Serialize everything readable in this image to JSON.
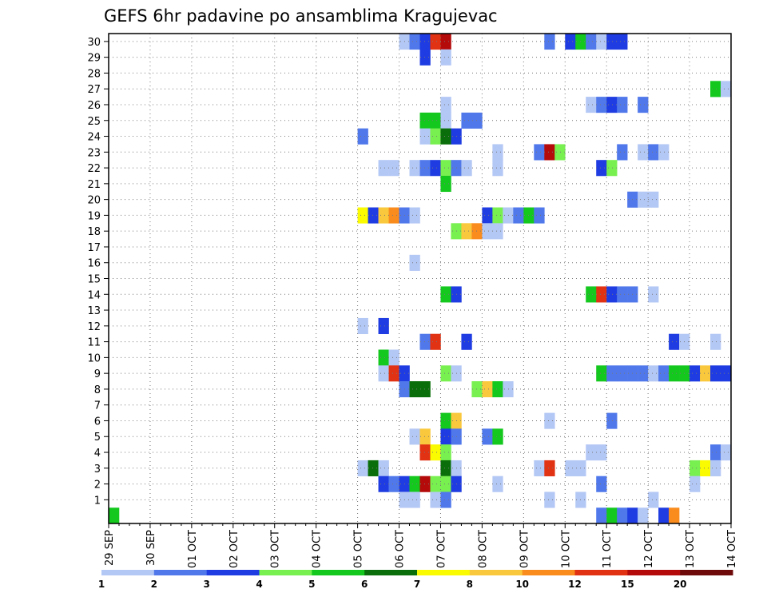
{
  "chart_data": {
    "type": "heatmap",
    "title": "GEFS 6hr padavine po ansamblima Kragujevac",
    "xlabel": "",
    "ylabel": "",
    "x_tick_labels": [
      "29 SEP",
      "30 SEP",
      "01 OCT",
      "02 OCT",
      "03 OCT",
      "04 OCT",
      "05 OCT",
      "06 OCT",
      "07 OCT",
      "08 OCT",
      "09 OCT",
      "10 OCT",
      "11 OCT",
      "12 OCT",
      "13 OCT",
      "14 OCT"
    ],
    "y_tick_labels": [
      "1",
      "2",
      "3",
      "4",
      "5",
      "6",
      "7",
      "8",
      "9",
      "10",
      "11",
      "12",
      "13",
      "14",
      "15",
      "16",
      "17",
      "18",
      "19",
      "20",
      "21",
      "22",
      "23",
      "24",
      "25",
      "26",
      "27",
      "28",
      "29",
      "30"
    ],
    "xlim_days": [
      0,
      15
    ],
    "ylim_members": [
      0,
      30
    ],
    "grid": true,
    "colorbar": {
      "placement": "bottom",
      "tick_labels": [
        "1",
        "2",
        "3",
        "4",
        "5",
        "6",
        "7",
        "8",
        "10",
        "12",
        "15",
        "20"
      ],
      "colors": [
        "#b4c8f5",
        "#5078eb",
        "#1e3ce1",
        "#78f050",
        "#14c81e",
        "#0a6e0a",
        "#fafa00",
        "#fac83c",
        "#fa8c1e",
        "#e13214",
        "#b40a0a",
        "#6e0a0a"
      ]
    },
    "cells_note": "[member, time_step (6h steps from 29 SEP 00z), color_class_index]",
    "cells": [
      [
        30,
        28,
        0
      ],
      [
        30,
        29,
        1
      ],
      [
        30,
        30,
        2
      ],
      [
        30,
        31,
        9
      ],
      [
        30,
        32,
        10
      ],
      [
        30,
        42,
        1
      ],
      [
        30,
        44,
        2
      ],
      [
        30,
        45,
        4
      ],
      [
        30,
        46,
        1
      ],
      [
        30,
        47,
        0
      ],
      [
        30,
        48,
        2
      ],
      [
        30,
        49,
        2
      ],
      [
        29,
        30,
        2
      ],
      [
        29,
        32,
        0
      ],
      [
        27,
        58,
        4
      ],
      [
        27,
        59,
        0
      ],
      [
        26,
        32,
        0
      ],
      [
        26,
        46,
        0
      ],
      [
        26,
        47,
        1
      ],
      [
        26,
        48,
        2
      ],
      [
        26,
        49,
        1
      ],
      [
        26,
        51,
        1
      ],
      [
        25,
        30,
        4
      ],
      [
        25,
        31,
        4
      ],
      [
        25,
        32,
        0
      ],
      [
        25,
        34,
        1
      ],
      [
        25,
        35,
        1
      ],
      [
        24,
        24,
        1
      ],
      [
        24,
        30,
        0
      ],
      [
        24,
        31,
        3
      ],
      [
        24,
        32,
        5
      ],
      [
        24,
        33,
        2
      ],
      [
        23,
        37,
        0
      ],
      [
        23,
        41,
        1
      ],
      [
        23,
        42,
        10
      ],
      [
        23,
        43,
        3
      ],
      [
        23,
        49,
        1
      ],
      [
        23,
        51,
        0
      ],
      [
        23,
        52,
        1
      ],
      [
        23,
        53,
        0
      ],
      [
        22,
        26,
        0
      ],
      [
        22,
        27,
        0
      ],
      [
        22,
        29,
        0
      ],
      [
        22,
        30,
        1
      ],
      [
        22,
        31,
        2
      ],
      [
        22,
        32,
        3
      ],
      [
        22,
        33,
        1
      ],
      [
        22,
        34,
        0
      ],
      [
        22,
        37,
        0
      ],
      [
        22,
        47,
        2
      ],
      [
        22,
        48,
        3
      ],
      [
        21,
        32,
        4
      ],
      [
        20,
        50,
        1
      ],
      [
        20,
        51,
        0
      ],
      [
        20,
        52,
        0
      ],
      [
        19,
        24,
        6
      ],
      [
        19,
        25,
        2
      ],
      [
        19,
        26,
        7
      ],
      [
        19,
        27,
        8
      ],
      [
        19,
        28,
        1
      ],
      [
        19,
        29,
        0
      ],
      [
        19,
        36,
        2
      ],
      [
        19,
        37,
        3
      ],
      [
        19,
        38,
        0
      ],
      [
        19,
        39,
        1
      ],
      [
        19,
        40,
        4
      ],
      [
        19,
        41,
        1
      ],
      [
        18,
        33,
        3
      ],
      [
        18,
        34,
        7
      ],
      [
        18,
        35,
        8
      ],
      [
        18,
        36,
        0
      ],
      [
        18,
        37,
        0
      ],
      [
        16,
        29,
        0
      ],
      [
        14,
        32,
        4
      ],
      [
        14,
        33,
        2
      ],
      [
        14,
        46,
        4
      ],
      [
        14,
        47,
        9
      ],
      [
        14,
        48,
        2
      ],
      [
        14,
        49,
        1
      ],
      [
        14,
        50,
        1
      ],
      [
        14,
        52,
        0
      ],
      [
        12,
        24,
        0
      ],
      [
        12,
        26,
        2
      ],
      [
        11,
        30,
        1
      ],
      [
        11,
        31,
        9
      ],
      [
        11,
        34,
        2
      ],
      [
        11,
        54,
        2
      ],
      [
        11,
        55,
        0
      ],
      [
        11,
        58,
        0
      ],
      [
        10,
        26,
        4
      ],
      [
        10,
        27,
        0
      ],
      [
        9,
        26,
        0
      ],
      [
        9,
        27,
        9
      ],
      [
        9,
        28,
        2
      ],
      [
        9,
        32,
        3
      ],
      [
        9,
        33,
        0
      ],
      [
        9,
        47,
        4
      ],
      [
        9,
        48,
        1
      ],
      [
        9,
        49,
        1
      ],
      [
        9,
        50,
        1
      ],
      [
        9,
        51,
        1
      ],
      [
        9,
        52,
        0
      ],
      [
        9,
        53,
        1
      ],
      [
        9,
        54,
        4
      ],
      [
        9,
        55,
        4
      ],
      [
        9,
        56,
        2
      ],
      [
        9,
        57,
        7
      ],
      [
        9,
        58,
        2
      ],
      [
        9,
        59,
        2
      ],
      [
        8,
        28,
        1
      ],
      [
        8,
        29,
        5
      ],
      [
        8,
        30,
        5
      ],
      [
        8,
        35,
        3
      ],
      [
        8,
        36,
        7
      ],
      [
        8,
        37,
        4
      ],
      [
        8,
        38,
        0
      ],
      [
        6,
        32,
        4
      ],
      [
        6,
        33,
        7
      ],
      [
        6,
        42,
        0
      ],
      [
        6,
        48,
        1
      ],
      [
        5,
        29,
        0
      ],
      [
        5,
        30,
        7
      ],
      [
        5,
        32,
        2
      ],
      [
        5,
        33,
        1
      ],
      [
        5,
        36,
        1
      ],
      [
        5,
        37,
        4
      ],
      [
        4,
        30,
        9
      ],
      [
        4,
        31,
        6
      ],
      [
        4,
        32,
        3
      ],
      [
        4,
        46,
        0
      ],
      [
        4,
        47,
        0
      ],
      [
        4,
        58,
        1
      ],
      [
        4,
        59,
        0
      ],
      [
        3,
        24,
        0
      ],
      [
        3,
        25,
        5
      ],
      [
        3,
        26,
        0
      ],
      [
        3,
        32,
        5
      ],
      [
        3,
        33,
        0
      ],
      [
        3,
        41,
        0
      ],
      [
        3,
        42,
        9
      ],
      [
        3,
        44,
        0
      ],
      [
        3,
        45,
        0
      ],
      [
        3,
        56,
        3
      ],
      [
        3,
        57,
        6
      ],
      [
        3,
        58,
        0
      ],
      [
        2,
        26,
        2
      ],
      [
        2,
        27,
        1
      ],
      [
        2,
        28,
        2
      ],
      [
        2,
        29,
        4
      ],
      [
        2,
        30,
        10
      ],
      [
        2,
        31,
        3
      ],
      [
        2,
        32,
        3
      ],
      [
        2,
        33,
        2
      ],
      [
        2,
        37,
        0
      ],
      [
        2,
        47,
        1
      ],
      [
        2,
        56,
        0
      ],
      [
        1,
        28,
        0
      ],
      [
        1,
        29,
        0
      ],
      [
        1,
        31,
        0
      ],
      [
        1,
        32,
        1
      ],
      [
        1,
        42,
        0
      ],
      [
        1,
        45,
        0
      ],
      [
        1,
        52,
        0
      ],
      [
        0,
        0,
        4
      ],
      [
        0,
        47,
        1
      ],
      [
        0,
        48,
        4
      ],
      [
        0,
        49,
        1
      ],
      [
        0,
        50,
        2
      ],
      [
        0,
        51,
        0
      ],
      [
        0,
        53,
        2
      ],
      [
        0,
        54,
        8
      ]
    ]
  }
}
